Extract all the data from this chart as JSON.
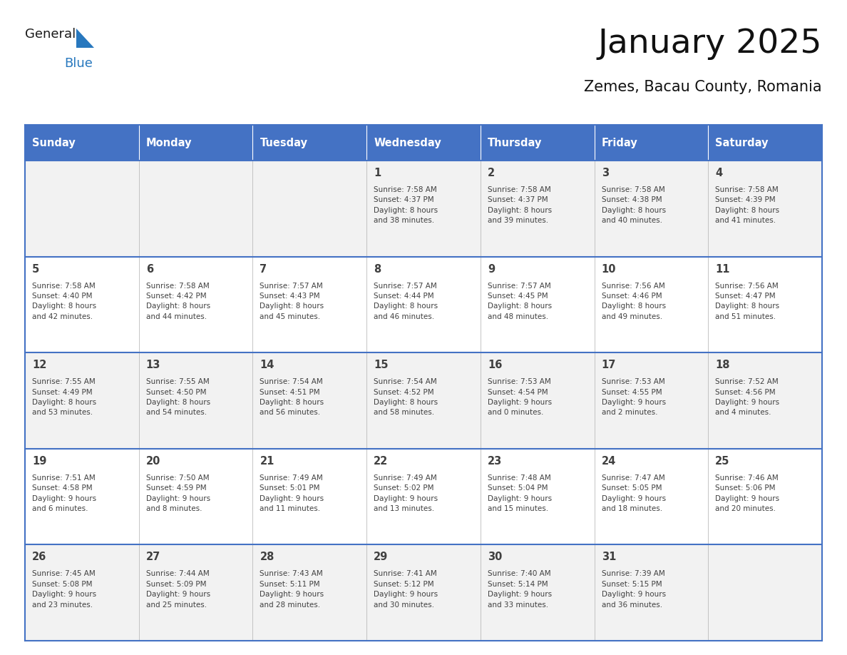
{
  "title": "January 2025",
  "subtitle": "Zemes, Bacau County, Romania",
  "header_bg": "#4472C4",
  "header_text_color": "#FFFFFF",
  "cell_bg_gray": "#F2F2F2",
  "cell_bg_white": "#FFFFFF",
  "border_color": "#4472C4",
  "text_color": "#404040",
  "divider_color": "#BBBBBB",
  "days_of_week": [
    "Sunday",
    "Monday",
    "Tuesday",
    "Wednesday",
    "Thursday",
    "Friday",
    "Saturday"
  ],
  "weeks": [
    [
      {
        "day": "",
        "info": ""
      },
      {
        "day": "",
        "info": ""
      },
      {
        "day": "",
        "info": ""
      },
      {
        "day": "1",
        "info": "Sunrise: 7:58 AM\nSunset: 4:37 PM\nDaylight: 8 hours\nand 38 minutes."
      },
      {
        "day": "2",
        "info": "Sunrise: 7:58 AM\nSunset: 4:37 PM\nDaylight: 8 hours\nand 39 minutes."
      },
      {
        "day": "3",
        "info": "Sunrise: 7:58 AM\nSunset: 4:38 PM\nDaylight: 8 hours\nand 40 minutes."
      },
      {
        "day": "4",
        "info": "Sunrise: 7:58 AM\nSunset: 4:39 PM\nDaylight: 8 hours\nand 41 minutes."
      }
    ],
    [
      {
        "day": "5",
        "info": "Sunrise: 7:58 AM\nSunset: 4:40 PM\nDaylight: 8 hours\nand 42 minutes."
      },
      {
        "day": "6",
        "info": "Sunrise: 7:58 AM\nSunset: 4:42 PM\nDaylight: 8 hours\nand 44 minutes."
      },
      {
        "day": "7",
        "info": "Sunrise: 7:57 AM\nSunset: 4:43 PM\nDaylight: 8 hours\nand 45 minutes."
      },
      {
        "day": "8",
        "info": "Sunrise: 7:57 AM\nSunset: 4:44 PM\nDaylight: 8 hours\nand 46 minutes."
      },
      {
        "day": "9",
        "info": "Sunrise: 7:57 AM\nSunset: 4:45 PM\nDaylight: 8 hours\nand 48 minutes."
      },
      {
        "day": "10",
        "info": "Sunrise: 7:56 AM\nSunset: 4:46 PM\nDaylight: 8 hours\nand 49 minutes."
      },
      {
        "day": "11",
        "info": "Sunrise: 7:56 AM\nSunset: 4:47 PM\nDaylight: 8 hours\nand 51 minutes."
      }
    ],
    [
      {
        "day": "12",
        "info": "Sunrise: 7:55 AM\nSunset: 4:49 PM\nDaylight: 8 hours\nand 53 minutes."
      },
      {
        "day": "13",
        "info": "Sunrise: 7:55 AM\nSunset: 4:50 PM\nDaylight: 8 hours\nand 54 minutes."
      },
      {
        "day": "14",
        "info": "Sunrise: 7:54 AM\nSunset: 4:51 PM\nDaylight: 8 hours\nand 56 minutes."
      },
      {
        "day": "15",
        "info": "Sunrise: 7:54 AM\nSunset: 4:52 PM\nDaylight: 8 hours\nand 58 minutes."
      },
      {
        "day": "16",
        "info": "Sunrise: 7:53 AM\nSunset: 4:54 PM\nDaylight: 9 hours\nand 0 minutes."
      },
      {
        "day": "17",
        "info": "Sunrise: 7:53 AM\nSunset: 4:55 PM\nDaylight: 9 hours\nand 2 minutes."
      },
      {
        "day": "18",
        "info": "Sunrise: 7:52 AM\nSunset: 4:56 PM\nDaylight: 9 hours\nand 4 minutes."
      }
    ],
    [
      {
        "day": "19",
        "info": "Sunrise: 7:51 AM\nSunset: 4:58 PM\nDaylight: 9 hours\nand 6 minutes."
      },
      {
        "day": "20",
        "info": "Sunrise: 7:50 AM\nSunset: 4:59 PM\nDaylight: 9 hours\nand 8 minutes."
      },
      {
        "day": "21",
        "info": "Sunrise: 7:49 AM\nSunset: 5:01 PM\nDaylight: 9 hours\nand 11 minutes."
      },
      {
        "day": "22",
        "info": "Sunrise: 7:49 AM\nSunset: 5:02 PM\nDaylight: 9 hours\nand 13 minutes."
      },
      {
        "day": "23",
        "info": "Sunrise: 7:48 AM\nSunset: 5:04 PM\nDaylight: 9 hours\nand 15 minutes."
      },
      {
        "day": "24",
        "info": "Sunrise: 7:47 AM\nSunset: 5:05 PM\nDaylight: 9 hours\nand 18 minutes."
      },
      {
        "day": "25",
        "info": "Sunrise: 7:46 AM\nSunset: 5:06 PM\nDaylight: 9 hours\nand 20 minutes."
      }
    ],
    [
      {
        "day": "26",
        "info": "Sunrise: 7:45 AM\nSunset: 5:08 PM\nDaylight: 9 hours\nand 23 minutes."
      },
      {
        "day": "27",
        "info": "Sunrise: 7:44 AM\nSunset: 5:09 PM\nDaylight: 9 hours\nand 25 minutes."
      },
      {
        "day": "28",
        "info": "Sunrise: 7:43 AM\nSunset: 5:11 PM\nDaylight: 9 hours\nand 28 minutes."
      },
      {
        "day": "29",
        "info": "Sunrise: 7:41 AM\nSunset: 5:12 PM\nDaylight: 9 hours\nand 30 minutes."
      },
      {
        "day": "30",
        "info": "Sunrise: 7:40 AM\nSunset: 5:14 PM\nDaylight: 9 hours\nand 33 minutes."
      },
      {
        "day": "31",
        "info": "Sunrise: 7:39 AM\nSunset: 5:15 PM\nDaylight: 9 hours\nand 36 minutes."
      },
      {
        "day": "",
        "info": ""
      }
    ]
  ],
  "logo_color_general": "#1A1A1A",
  "logo_color_blue": "#2878BE"
}
